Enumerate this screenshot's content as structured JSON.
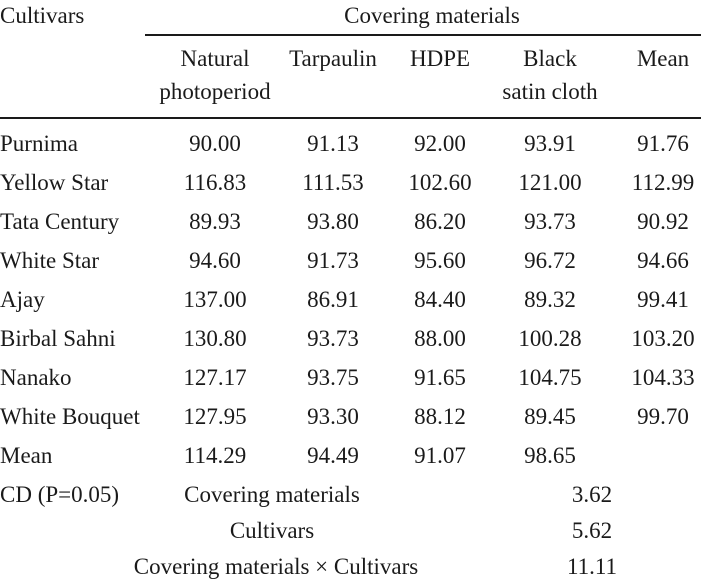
{
  "header": {
    "cultivars": "Cultivars",
    "group": "Covering materials",
    "columns": [
      [
        "Natural",
        "photoperiod"
      ],
      [
        "Tarpaulin"
      ],
      [
        "HDPE"
      ],
      [
        "Black",
        "satin cloth"
      ],
      [
        "Mean"
      ]
    ]
  },
  "rows": [
    {
      "name": "Purnima",
      "values": [
        "90.00",
        "91.13",
        "92.00",
        "93.91",
        "91.76"
      ]
    },
    {
      "name": "Yellow Star",
      "values": [
        "116.83",
        "111.53",
        "102.60",
        "121.00",
        "112.99"
      ]
    },
    {
      "name": "Tata Century",
      "values": [
        "89.93",
        "93.80",
        "86.20",
        "93.73",
        "90.92"
      ]
    },
    {
      "name": "White Star",
      "values": [
        "94.60",
        "91.73",
        "95.60",
        "96.72",
        "94.66"
      ]
    },
    {
      "name": "Ajay",
      "values": [
        "137.00",
        "86.91",
        "84.40",
        "89.32",
        "99.41"
      ]
    },
    {
      "name": "Birbal Sahni",
      "values": [
        "130.80",
        "93.73",
        "88.00",
        "100.28",
        "103.20"
      ]
    },
    {
      "name": "Nanako",
      "values": [
        "127.17",
        "93.75",
        "91.65",
        "104.75",
        "104.33"
      ]
    },
    {
      "name": "White Bouquet",
      "values": [
        "127.95",
        "93.30",
        "88.12",
        "89.45",
        "99.70"
      ]
    },
    {
      "name": "Mean",
      "values": [
        "114.29",
        "94.49",
        "91.07",
        "98.65",
        ""
      ]
    }
  ],
  "cd": {
    "label": "CD (P=0.05)",
    "items": [
      {
        "label": "Covering materials",
        "value": "3.62"
      },
      {
        "label": "Cultivars",
        "value": "5.62"
      },
      {
        "label": "Covering materials × Cultivars",
        "value": "11.11"
      }
    ]
  }
}
